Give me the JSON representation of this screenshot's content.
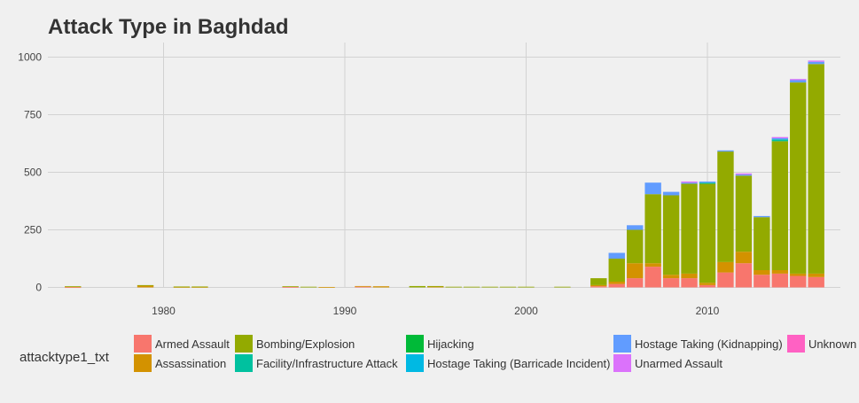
{
  "chart_data": {
    "type": "bar",
    "stacked": true,
    "title": "Attack Type in Baghdad",
    "xlabel": "",
    "ylabel": "",
    "xlim": [
      1974,
      2017
    ],
    "ylim": [
      0,
      1050
    ],
    "x_ticks": [
      1980,
      1990,
      2000,
      2010
    ],
    "y_ticks": [
      0,
      250,
      500,
      750,
      1000
    ],
    "grid": true,
    "legend": {
      "title": "attacktype1_txt",
      "position": "bottom"
    },
    "series": [
      {
        "name": "Armed Assault",
        "color": "#F8766D",
        "values": [
          1,
          0,
          0,
          0,
          0,
          0,
          0,
          0,
          0,
          0,
          0,
          0,
          2,
          0,
          0,
          0,
          3,
          0,
          0,
          0,
          0,
          0,
          0,
          0,
          0,
          0,
          0,
          0,
          0,
          5,
          15,
          40,
          90,
          40,
          40,
          10,
          65,
          105,
          55,
          60,
          50,
          45
        ]
      },
      {
        "name": "Assassination",
        "color": "#D39200",
        "values": [
          3,
          0,
          0,
          0,
          8,
          0,
          2,
          2,
          0,
          0,
          0,
          0,
          0,
          0,
          2,
          0,
          3,
          5,
          0,
          0,
          5,
          0,
          0,
          0,
          0,
          0,
          0,
          0,
          0,
          5,
          10,
          65,
          15,
          15,
          20,
          10,
          45,
          50,
          20,
          15,
          10,
          15
        ]
      },
      {
        "name": "Bombing/Explosion",
        "color": "#93AA00",
        "values": [
          1,
          0,
          0,
          0,
          2,
          0,
          2,
          2,
          0,
          0,
          0,
          0,
          3,
          3,
          0,
          0,
          0,
          0,
          0,
          6,
          1,
          3,
          3,
          3,
          3,
          3,
          0,
          3,
          0,
          30,
          100,
          145,
          300,
          345,
          390,
          430,
          480,
          330,
          230,
          560,
          830,
          910
        ]
      },
      {
        "name": "Hijacking",
        "color": "#00BA38",
        "values": [
          0,
          0,
          0,
          0,
          0,
          0,
          0,
          0,
          0,
          0,
          0,
          0,
          0,
          0,
          0,
          0,
          0,
          0,
          0,
          0,
          0,
          0,
          0,
          0,
          0,
          0,
          0,
          0,
          0,
          0,
          0,
          0,
          0,
          0,
          0,
          0,
          0,
          0,
          0,
          0,
          0,
          0
        ]
      },
      {
        "name": "Facility/Infrastructure Attack",
        "color": "#00C19F",
        "values": [
          0,
          0,
          0,
          0,
          0,
          0,
          0,
          0,
          0,
          0,
          0,
          0,
          0,
          0,
          0,
          0,
          0,
          0,
          0,
          0,
          0,
          0,
          0,
          0,
          0,
          0,
          0,
          0,
          0,
          0,
          0,
          0,
          0,
          0,
          0,
          5,
          0,
          0,
          0,
          8,
          0,
          0
        ]
      },
      {
        "name": "Hostage Taking (Barricade Incident)",
        "color": "#00B9E3",
        "values": [
          0,
          0,
          0,
          0,
          0,
          0,
          0,
          0,
          0,
          0,
          0,
          0,
          0,
          0,
          0,
          0,
          0,
          0,
          0,
          0,
          0,
          0,
          0,
          0,
          0,
          0,
          0,
          0,
          0,
          0,
          0,
          0,
          0,
          0,
          0,
          0,
          0,
          0,
          0,
          0,
          0,
          0
        ]
      },
      {
        "name": "Hostage Taking (Kidnapping)",
        "color": "#619CFF",
        "values": [
          0,
          0,
          0,
          0,
          0,
          0,
          0,
          0,
          0,
          0,
          0,
          0,
          0,
          0,
          0,
          0,
          0,
          0,
          0,
          0,
          0,
          0,
          0,
          0,
          0,
          0,
          0,
          0,
          0,
          0,
          25,
          20,
          50,
          15,
          5,
          5,
          5,
          5,
          5,
          5,
          10,
          10
        ]
      },
      {
        "name": "Unarmed Assault",
        "color": "#DB72FB",
        "values": [
          0,
          0,
          0,
          0,
          0,
          0,
          0,
          0,
          0,
          0,
          0,
          0,
          0,
          0,
          0,
          0,
          0,
          0,
          0,
          0,
          0,
          0,
          0,
          0,
          0,
          0,
          0,
          0,
          0,
          0,
          0,
          0,
          0,
          0,
          5,
          0,
          0,
          5,
          0,
          5,
          5,
          5
        ]
      },
      {
        "name": "Unknown",
        "color": "#FF61C3",
        "values": [
          0,
          0,
          0,
          0,
          0,
          0,
          0,
          0,
          0,
          0,
          0,
          0,
          0,
          0,
          0,
          0,
          0,
          0,
          0,
          0,
          0,
          0,
          0,
          0,
          0,
          0,
          0,
          0,
          0,
          0,
          0,
          0,
          0,
          0,
          0,
          0,
          0,
          0,
          0,
          0,
          0,
          0
        ]
      }
    ],
    "x": [
      1975,
      1976,
      1977,
      1978,
      1979,
      1980,
      1981,
      1982,
      1983,
      1984,
      1985,
      1986,
      1987,
      1988,
      1989,
      1990,
      1991,
      1992,
      1993,
      1994,
      1995,
      1996,
      1997,
      1998,
      1999,
      2000,
      2001,
      2002,
      2003,
      2004,
      2005,
      2006,
      2007,
      2008,
      2009,
      2010,
      2011,
      2012,
      2013,
      2014,
      2015,
      2016
    ]
  },
  "legend_order": [
    "Armed Assault",
    "Assassination",
    "Bombing/Explosion",
    "Facility/Infrastructure Attack",
    "Hijacking",
    "Hostage Taking (Barricade Incident)",
    "Hostage Taking (Kidnapping)",
    "Unarmed Assault",
    "Unknown"
  ]
}
